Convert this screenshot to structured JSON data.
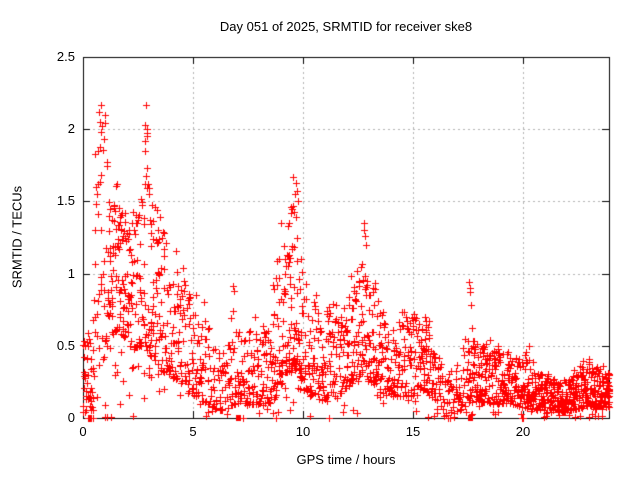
{
  "chart_data": {
    "type": "scatter",
    "title": "Day 051 of 2025, SRMTID for receiver ske8",
    "xlabel": "GPS time / hours",
    "ylabel": "SRMTID / TECUs",
    "xlim": [
      0,
      23.92
    ],
    "ylim": [
      0,
      2.5
    ],
    "x_ticks": [
      0,
      5,
      10,
      15,
      20
    ],
    "x_tick_labels": [
      "0",
      "5",
      "10",
      "15",
      "20"
    ],
    "y_ticks": [
      0,
      0.5,
      1,
      1.5,
      2,
      2.5
    ],
    "y_tick_labels": [
      "0",
      "0.5",
      "1",
      "1.5",
      "2",
      "2.5"
    ],
    "grid": true,
    "grid_color": "#b3b3b3",
    "axis_color": "#000000",
    "marker": "plus",
    "marker_color": "#ff0000",
    "seed": 51,
    "density_profile": {
      "bin_hours": 0.1,
      "fields": [
        "hour",
        "low",
        "high",
        "points_per_bin",
        "low_bias"
      ],
      "keypoints": [
        [
          0.0,
          0.02,
          0.55,
          11,
          1.4
        ],
        [
          0.35,
          0.03,
          0.62,
          10,
          1.4
        ],
        [
          0.5,
          0.1,
          1.0,
          6,
          1.5
        ],
        [
          0.65,
          0.25,
          1.6,
          6,
          1.4
        ],
        [
          0.8,
          0.35,
          2.1,
          7,
          1.7
        ],
        [
          1.0,
          0.45,
          2.0,
          8,
          1.9
        ],
        [
          1.15,
          0.55,
          1.5,
          11,
          1.15
        ],
        [
          1.5,
          0.6,
          1.48,
          12,
          1.1
        ],
        [
          1.9,
          0.55,
          1.45,
          11,
          1.2
        ],
        [
          2.3,
          0.45,
          1.3,
          10,
          1.3
        ],
        [
          2.6,
          0.5,
          1.55,
          10,
          1.5
        ],
        [
          2.85,
          0.5,
          2.0,
          11,
          1.9
        ],
        [
          3.1,
          0.4,
          1.6,
          10,
          1.5
        ],
        [
          3.4,
          0.35,
          1.42,
          9,
          1.5
        ],
        [
          3.8,
          0.3,
          1.22,
          8,
          1.5
        ],
        [
          4.2,
          0.25,
          1.08,
          8,
          1.6
        ],
        [
          4.6,
          0.2,
          0.95,
          8,
          1.7
        ],
        [
          5.1,
          0.15,
          0.8,
          7,
          1.7
        ],
        [
          5.6,
          0.1,
          0.72,
          7,
          1.7
        ],
        [
          6.2,
          0.05,
          0.55,
          6,
          1.7
        ],
        [
          6.6,
          0.06,
          0.5,
          6,
          1.7
        ],
        [
          6.85,
          0.1,
          0.85,
          8,
          2.0
        ],
        [
          7.1,
          0.08,
          0.55,
          7,
          1.7
        ],
        [
          7.5,
          0.08,
          0.6,
          7,
          1.7
        ],
        [
          8.0,
          0.1,
          0.68,
          8,
          1.7
        ],
        [
          8.4,
          0.1,
          0.6,
          8,
          1.6
        ],
        [
          8.8,
          0.15,
          1.05,
          9,
          1.8
        ],
        [
          9.2,
          0.3,
          1.3,
          11,
          1.6
        ],
        [
          9.55,
          0.35,
          1.55,
          12,
          1.8
        ],
        [
          9.8,
          0.3,
          1.4,
          11,
          1.9
        ],
        [
          10.1,
          0.2,
          1.0,
          9,
          1.7
        ],
        [
          10.35,
          0.15,
          0.75,
          8,
          1.6
        ],
        [
          10.55,
          0.15,
          0.9,
          8,
          1.8
        ],
        [
          10.9,
          0.12,
          0.7,
          8,
          1.6
        ],
        [
          11.2,
          0.15,
          0.85,
          8,
          1.7
        ],
        [
          11.6,
          0.15,
          0.75,
          8,
          1.5
        ],
        [
          12.0,
          0.2,
          0.88,
          9,
          1.5
        ],
        [
          12.4,
          0.25,
          1.0,
          10,
          1.5
        ],
        [
          12.7,
          0.3,
          1.1,
          10,
          1.6
        ],
        [
          13.0,
          0.25,
          0.95,
          9,
          1.5
        ],
        [
          13.4,
          0.2,
          1.0,
          9,
          1.6
        ],
        [
          13.8,
          0.15,
          0.65,
          8,
          1.5
        ],
        [
          14.3,
          0.15,
          0.6,
          8,
          1.4
        ],
        [
          14.7,
          0.15,
          0.72,
          8,
          1.5
        ],
        [
          15.1,
          0.15,
          0.7,
          8,
          1.4
        ],
        [
          15.55,
          0.2,
          0.68,
          9,
          1.4
        ],
        [
          16.0,
          0.1,
          0.5,
          7,
          1.6
        ],
        [
          16.4,
          0.03,
          0.3,
          5,
          1.5
        ],
        [
          17.0,
          0.03,
          0.35,
          5,
          1.5
        ],
        [
          17.45,
          0.1,
          0.6,
          8,
          1.5
        ],
        [
          17.8,
          0.12,
          0.56,
          10,
          1.5
        ],
        [
          18.3,
          0.1,
          0.5,
          10,
          1.5
        ],
        [
          18.9,
          0.1,
          0.5,
          10,
          1.5
        ],
        [
          19.4,
          0.1,
          0.46,
          9,
          1.5
        ],
        [
          19.9,
          0.08,
          0.42,
          9,
          1.5
        ],
        [
          20.4,
          0.06,
          0.4,
          9,
          1.5
        ],
        [
          20.9,
          0.05,
          0.32,
          10,
          1.4
        ],
        [
          21.4,
          0.03,
          0.25,
          10,
          1.3
        ],
        [
          21.9,
          0.04,
          0.26,
          10,
          1.3
        ],
        [
          22.4,
          0.06,
          0.33,
          10,
          1.3
        ],
        [
          22.9,
          0.08,
          0.38,
          11,
          1.3
        ],
        [
          23.4,
          0.06,
          0.36,
          11,
          1.3
        ],
        [
          23.9,
          0.05,
          0.3,
          11,
          1.3
        ]
      ]
    },
    "outlier_points": [
      [
        0.55,
        1.83
      ],
      [
        0.58,
        1.6
      ],
      [
        0.62,
        1.55
      ],
      [
        0.68,
        1.62
      ],
      [
        0.72,
        2.12
      ],
      [
        0.76,
        2.05
      ],
      [
        0.8,
        2.17
      ],
      [
        0.84,
        1.98
      ],
      [
        0.88,
        2.02
      ],
      [
        0.95,
        1.93
      ],
      [
        1.0,
        2.1
      ],
      [
        1.02,
        2.04
      ],
      [
        1.08,
        1.77
      ],
      [
        2.82,
        1.62
      ],
      [
        2.86,
        2.17
      ],
      [
        2.9,
        2.0
      ],
      [
        2.93,
        1.95
      ],
      [
        2.97,
        1.62
      ],
      [
        3.02,
        1.55
      ],
      [
        3.35,
        1.44
      ],
      [
        3.42,
        1.3
      ],
      [
        6.85,
        0.88
      ],
      [
        9.35,
        1.35
      ],
      [
        9.45,
        1.42
      ],
      [
        9.55,
        1.47
      ],
      [
        9.62,
        1.55
      ],
      [
        9.68,
        1.63
      ],
      [
        9.72,
        1.57
      ],
      [
        9.78,
        1.5
      ],
      [
        12.78,
        1.35
      ],
      [
        12.8,
        1.3
      ],
      [
        12.82,
        1.26
      ],
      [
        12.86,
        1.2
      ],
      [
        15.05,
        0.72
      ],
      [
        15.12,
        0.68
      ],
      [
        15.55,
        0.7
      ],
      [
        15.62,
        0.67
      ],
      [
        17.55,
        0.94
      ],
      [
        17.58,
        0.9
      ],
      [
        17.61,
        0.87
      ],
      [
        17.64,
        0.78
      ],
      [
        17.68,
        0.62
      ],
      [
        20.3,
        0.5
      ]
    ],
    "zero_points": [
      [
        0.3,
        0
      ],
      [
        0.36,
        0
      ],
      [
        0.44,
        0
      ],
      [
        1.1,
        0.01
      ],
      [
        1.28,
        0.01
      ],
      [
        16.6,
        0
      ],
      [
        16.68,
        0
      ],
      [
        19.95,
        0
      ],
      [
        20.0,
        0
      ]
    ],
    "zero_squares": [
      [
        7.05,
        0
      ],
      [
        17.62,
        0
      ]
    ]
  }
}
